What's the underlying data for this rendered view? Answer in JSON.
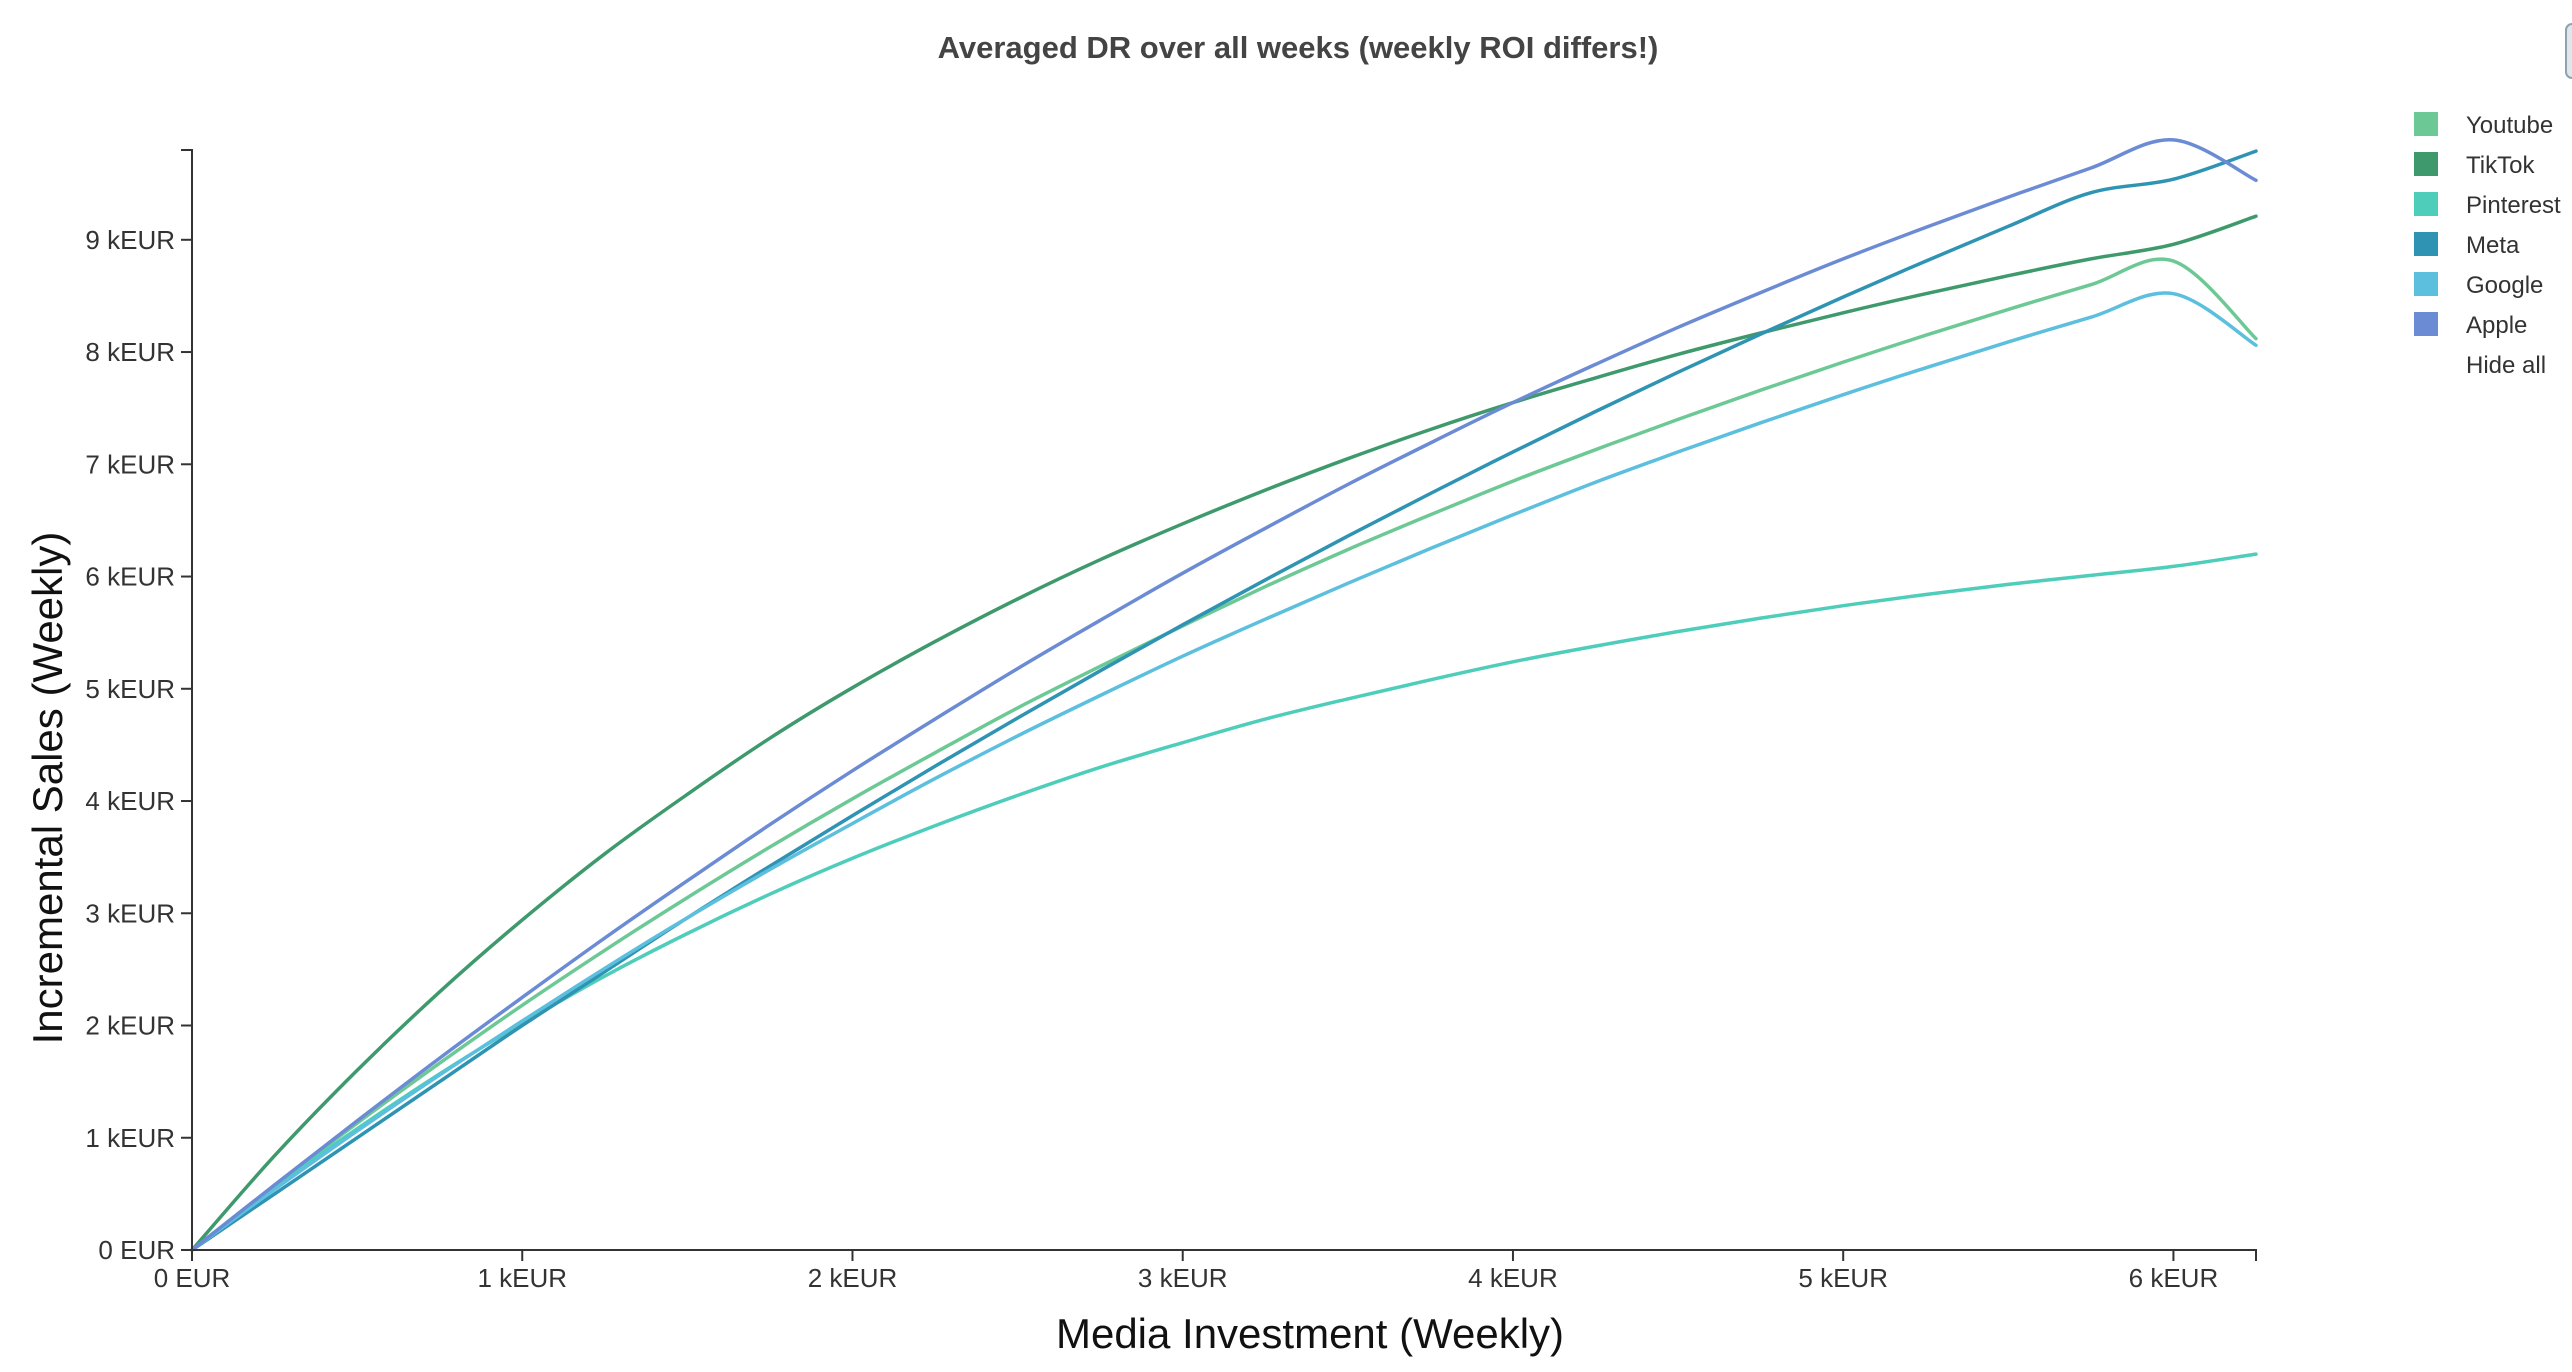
{
  "chart_data": {
    "type": "line",
    "title": "Averaged DR over all weeks (weekly ROI differs!)",
    "xlabel": "Media Investment (Weekly)",
    "ylabel": "Incremental Sales (Weekly)",
    "xlim": [
      0,
      6250
    ],
    "ylim": [
      0,
      9800
    ],
    "x_ticks": [
      {
        "value": 0,
        "label": "0 EUR"
      },
      {
        "value": 1000,
        "label": "1 kEUR"
      },
      {
        "value": 2000,
        "label": "2 kEUR"
      },
      {
        "value": 3000,
        "label": "3 kEUR"
      },
      {
        "value": 4000,
        "label": "4 kEUR"
      },
      {
        "value": 5000,
        "label": "5 kEUR"
      },
      {
        "value": 6000,
        "label": "6 kEUR"
      }
    ],
    "y_ticks": [
      {
        "value": 0,
        "label": "0 EUR"
      },
      {
        "value": 1000,
        "label": "1 kEUR"
      },
      {
        "value": 2000,
        "label": "2 kEUR"
      },
      {
        "value": 3000,
        "label": "3 kEUR"
      },
      {
        "value": 4000,
        "label": "4 kEUR"
      },
      {
        "value": 5000,
        "label": "5 kEUR"
      },
      {
        "value": 6000,
        "label": "6 kEUR"
      },
      {
        "value": 7000,
        "label": "7 kEUR"
      },
      {
        "value": 8000,
        "label": "8 kEUR"
      },
      {
        "value": 9000,
        "label": "9 kEUR"
      }
    ],
    "grid": false,
    "legend_position": "top-right",
    "x": [
      0,
      250,
      500,
      750,
      1000,
      1250,
      1500,
      1750,
      2000,
      2250,
      2500,
      2750,
      3000,
      3250,
      3500,
      3750,
      4000,
      4250,
      4500,
      4750,
      5000,
      5250,
      5500,
      5750,
      6000,
      6250
    ],
    "series": [
      {
        "name": "Youtube",
        "color": "#6cc995",
        "values": [
          0,
          575,
          1130,
          1665,
          2180,
          2670,
          3140,
          3590,
          4020,
          4430,
          4830,
          5200,
          5560,
          5910,
          6240,
          6550,
          6850,
          7130,
          7400,
          7660,
          7910,
          8150,
          8380,
          8600,
          8810,
          8120
        ]
      },
      {
        "name": "TikTok",
        "color": "#3e9a6c",
        "values": [
          0,
          840,
          1600,
          2300,
          2940,
          3530,
          4060,
          4560,
          5010,
          5420,
          5800,
          6150,
          6470,
          6770,
          7050,
          7310,
          7550,
          7770,
          7980,
          8170,
          8350,
          8520,
          8680,
          8830,
          8960,
          9210
        ]
      },
      {
        "name": "Pinterest",
        "color": "#4fcdbb",
        "values": [
          0,
          560,
          1080,
          1570,
          2020,
          2440,
          2820,
          3170,
          3490,
          3780,
          4050,
          4300,
          4520,
          4730,
          4910,
          5080,
          5240,
          5380,
          5510,
          5630,
          5740,
          5840,
          5930,
          6010,
          6090,
          6200
        ]
      },
      {
        "name": "Meta",
        "color": "#2f93b3",
        "values": [
          0,
          500,
          1000,
          1500,
          2000,
          2480,
          2960,
          3420,
          3870,
          4310,
          4740,
          5160,
          5570,
          5970,
          6360,
          6740,
          7110,
          7470,
          7820,
          8160,
          8490,
          8810,
          9120,
          9420,
          9540,
          9790
        ]
      },
      {
        "name": "Google",
        "color": "#5bbfdd",
        "values": [
          0,
          540,
          1060,
          1560,
          2040,
          2510,
          2960,
          3390,
          3800,
          4200,
          4580,
          4940,
          5290,
          5620,
          5940,
          6250,
          6550,
          6840,
          7110,
          7370,
          7620,
          7860,
          8090,
          8310,
          8520,
          8060
        ]
      },
      {
        "name": "Apple",
        "color": "#6b8bd4",
        "values": [
          0,
          580,
          1150,
          1710,
          2250,
          2780,
          3290,
          3790,
          4270,
          4730,
          5180,
          5610,
          6030,
          6430,
          6820,
          7190,
          7550,
          7890,
          8220,
          8530,
          8830,
          9110,
          9380,
          9640,
          9890,
          9530
        ]
      }
    ],
    "legend_extra": "Hide all"
  }
}
